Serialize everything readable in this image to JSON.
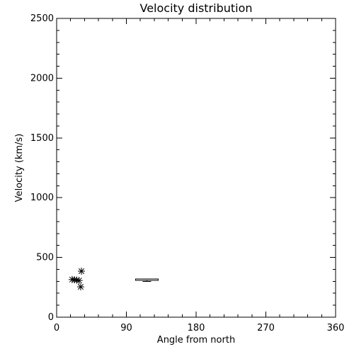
{
  "chart_data": {
    "type": "scatter",
    "title": "Velocity distribution",
    "xlabel": "Angle from north",
    "ylabel": "Velocity (km/s)",
    "xlim": [
      0,
      360
    ],
    "ylim": [
      0,
      2500
    ],
    "xticks": [
      0,
      90,
      180,
      270,
      360
    ],
    "yticks": [
      0,
      500,
      1000,
      1500,
      2000,
      2500
    ],
    "minor_ticks": true,
    "grid": false,
    "marker": "asterisk",
    "points": [
      {
        "x": 32,
        "y": 385
      },
      {
        "x": 20,
        "y": 315
      },
      {
        "x": 23,
        "y": 313
      },
      {
        "x": 26,
        "y": 310
      },
      {
        "x": 29,
        "y": 307
      },
      {
        "x": 31,
        "y": 254
      }
    ],
    "box": {
      "x_from": 102,
      "x_to": 131,
      "y_low": 299,
      "y_q1": 309,
      "y_q3": 321
    }
  }
}
